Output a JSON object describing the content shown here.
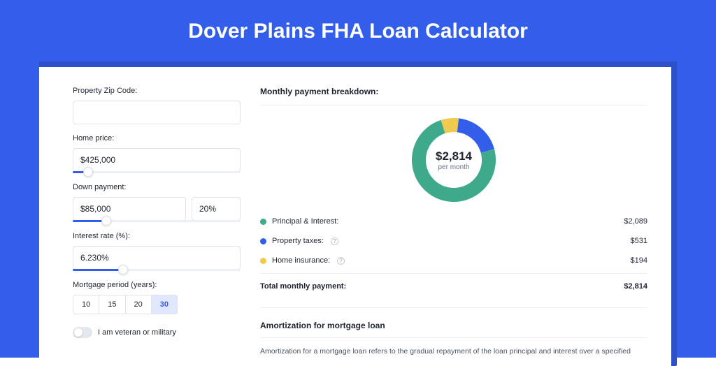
{
  "page": {
    "title": "Dover Plains FHA Loan Calculator",
    "background_color": "#335eea",
    "shadow_color": "#2c51c9"
  },
  "form": {
    "zip": {
      "label": "Property Zip Code:",
      "value": ""
    },
    "home_price": {
      "label": "Home price:",
      "value": "$425,000",
      "slider_pct": 9
    },
    "down_payment": {
      "label": "Down payment:",
      "value": "$85,000",
      "pct_value": "20%",
      "slider_pct": 20
    },
    "interest_rate": {
      "label": "Interest rate (%):",
      "value": "6.230%",
      "slider_pct": 30
    },
    "period": {
      "label": "Mortgage period (years):",
      "options": [
        "10",
        "15",
        "20",
        "30"
      ],
      "selected_index": 3
    },
    "veteran": {
      "label": "I am veteran or military",
      "checked": false
    }
  },
  "breakdown": {
    "title": "Monthly payment breakdown:",
    "donut": {
      "amount": "$2,814",
      "sub": "per month",
      "size": 120,
      "ring_width": 20,
      "segments": [
        {
          "label": "Principal & Interest:",
          "value": "$2,089",
          "color": "#3faa8b",
          "pct": 74.2
        },
        {
          "label": "Property taxes:",
          "value": "$531",
          "color": "#335eea",
          "pct": 18.9,
          "has_info": true
        },
        {
          "label": "Home insurance:",
          "value": "$194",
          "color": "#f0c94f",
          "pct": 6.9,
          "has_info": true
        }
      ],
      "start_angle": -18
    },
    "total": {
      "label": "Total monthly payment:",
      "value": "$2,814"
    }
  },
  "amortization": {
    "title": "Amortization for mortgage loan",
    "body": "Amortization for a mortgage loan refers to the gradual repayment of the loan principal and interest over a specified"
  }
}
